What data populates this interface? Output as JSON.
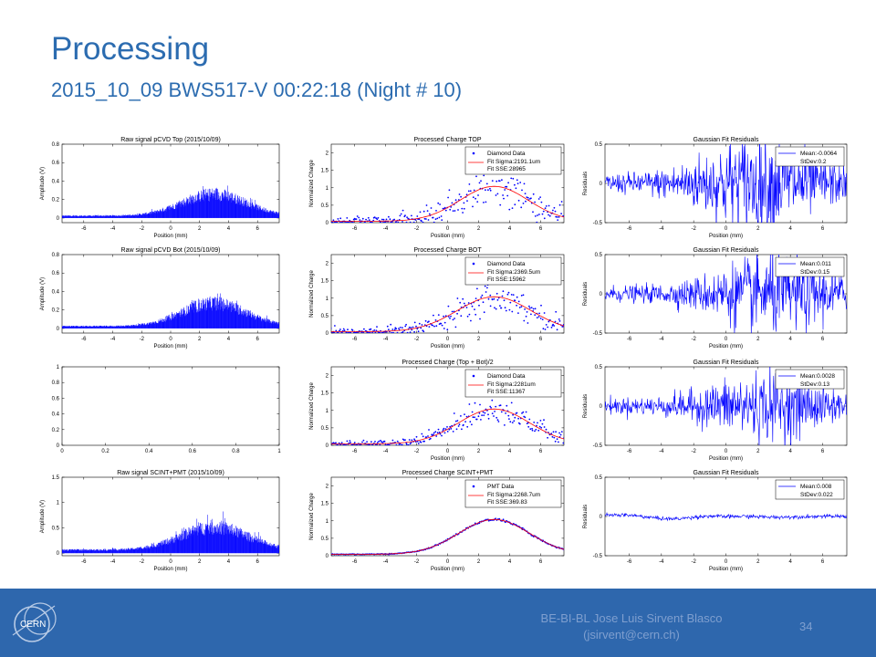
{
  "slide": {
    "title": "Processing",
    "subtitle": "2015_10_09 BWS517-V 00:22:18 (Night # 10)"
  },
  "footer": {
    "author": "BE-BI-BL Jose Luis Sirvent Blasco",
    "email": "(jsirvent@cern.ch)",
    "page_number": "34",
    "logo_text": "CERN"
  },
  "colors": {
    "accent": "#2c6cb0",
    "footer_bg": "#2e67ad",
    "footer_text": "#7f9fcf",
    "data_blue": "#0000ff",
    "fit_red": "#ff0000"
  },
  "chart_data": [
    {
      "id": "raw-top",
      "type": "area",
      "title": "Raw signal pCVD Top (2015/10/09)",
      "xlabel": "Position (mm)",
      "ylabel": "Amplitude (V)",
      "xlim": [
        -7.5,
        7.5
      ],
      "ylim": [
        -0.05,
        0.8
      ],
      "xticks": [
        -6,
        -4,
        -2,
        0,
        2,
        4,
        6
      ],
      "yticks": [
        0,
        0.2,
        0.4,
        0.6,
        0.8
      ],
      "yticklabels": [
        "0",
        "0.2",
        "0.4",
        "0.6",
        "0.8"
      ],
      "signal": {
        "center": 3,
        "sigma": 2.2,
        "peak": 0.3,
        "baseline": 0.03
      }
    },
    {
      "id": "proc-top",
      "type": "scatter",
      "title": "Processed Charge TOP",
      "xlabel": "Position (mm)",
      "ylabel": "Normalized Charge",
      "xlim": [
        -7.5,
        7.5
      ],
      "ylim": [
        0,
        2.25
      ],
      "xticks": [
        -6,
        -4,
        -2,
        0,
        2,
        4,
        6
      ],
      "yticks": [
        0,
        0.5,
        1,
        1.5,
        2
      ],
      "yticklabels": [
        "0",
        "0.5",
        "1",
        "1.5",
        "2"
      ],
      "fit": {
        "center": 3,
        "sigma": 2.19,
        "amplitude": 1.0
      },
      "noise": 0.22,
      "legend": [
        "Diamond Data",
        "Fit Sigma:2191.1um",
        "Fit SSE:28965"
      ]
    },
    {
      "id": "resid-top",
      "type": "line",
      "title": "Gaussian Fit Residuals",
      "xlabel": "Position (mm)",
      "ylabel": "Residuals",
      "xlim": [
        -7.5,
        7.5
      ],
      "ylim": [
        -0.5,
        0.5
      ],
      "xticks": [
        -6,
        -4,
        -2,
        0,
        2,
        4,
        6
      ],
      "yticks": [
        -0.5,
        0,
        0.5
      ],
      "yticklabels": [
        "-0.5",
        "0",
        "0.5"
      ],
      "noise": {
        "base": 0.06,
        "peak": 0.32,
        "center": 2,
        "width": 3
      },
      "legend": [
        "Mean:-0.0064",
        "StDev:0.2"
      ]
    },
    {
      "id": "raw-bot",
      "type": "area",
      "title": "Raw signal pCVD Bot (2015/10/09)",
      "xlabel": "Position (mm)",
      "ylabel": "Amplitude (V)",
      "xlim": [
        -7.5,
        7.5
      ],
      "ylim": [
        -0.05,
        0.8
      ],
      "xticks": [
        -6,
        -4,
        -2,
        0,
        2,
        4,
        6
      ],
      "yticks": [
        0,
        0.2,
        0.4,
        0.6,
        0.8
      ],
      "yticklabels": [
        "0",
        "0.2",
        "0.4",
        "0.6",
        "0.8"
      ],
      "signal": {
        "center": 3,
        "sigma": 2.2,
        "peak": 0.32,
        "baseline": 0.03
      }
    },
    {
      "id": "proc-bot",
      "type": "scatter",
      "title": "Processed Charge BOT",
      "xlabel": "Position (mm)",
      "ylabel": "Normalized Charge",
      "xlim": [
        -7.5,
        7.5
      ],
      "ylim": [
        0,
        2.25
      ],
      "xticks": [
        -6,
        -4,
        -2,
        0,
        2,
        4,
        6
      ],
      "yticks": [
        0,
        0.5,
        1,
        1.5,
        2
      ],
      "yticklabels": [
        "0",
        "0.5",
        "1",
        "1.5",
        "2"
      ],
      "fit": {
        "center": 3,
        "sigma": 2.37,
        "amplitude": 1.0
      },
      "noise": 0.17,
      "legend": [
        "Diamond Data",
        "Fit Sigma:2369.5um",
        "Fit SSE:15962"
      ]
    },
    {
      "id": "resid-bot",
      "type": "line",
      "title": "Gaussian Fit Residuals",
      "xlabel": "Position (mm)",
      "ylabel": "Residuals",
      "xlim": [
        -7.5,
        7.5
      ],
      "ylim": [
        -0.5,
        0.5
      ],
      "xticks": [
        -6,
        -4,
        -2,
        0,
        2,
        4,
        6
      ],
      "yticks": [
        -0.5,
        0,
        0.5
      ],
      "yticklabels": [
        "-0.5",
        "0",
        "0.5"
      ],
      "noise": {
        "base": 0.05,
        "peak": 0.26,
        "center": 3,
        "width": 3
      },
      "legend": [
        "Mean:0.011",
        "StDev:0.15"
      ]
    },
    {
      "id": "empty",
      "type": "line",
      "title": "",
      "xlabel": "",
      "ylabel": "",
      "xlim": [
        0,
        1
      ],
      "ylim": [
        0,
        1
      ],
      "xticks": [
        0,
        0.2,
        0.4,
        0.6,
        0.8,
        1
      ],
      "xticklabels": [
        "0",
        "0.2",
        "0.4",
        "0.6",
        "0.8",
        "1"
      ],
      "yticks": [
        0,
        0.2,
        0.4,
        0.6,
        0.8,
        1
      ],
      "yticklabels": [
        "0",
        "0.2",
        "0.4",
        "0.6",
        "0.8",
        "1"
      ]
    },
    {
      "id": "proc-avg",
      "type": "scatter",
      "title": "Processed Charge (Top + Bot)/2",
      "xlabel": "Position (mm)",
      "ylabel": "Normalized Charge",
      "xlim": [
        -7.5,
        7.5
      ],
      "ylim": [
        0,
        2.25
      ],
      "xticks": [
        -6,
        -4,
        -2,
        0,
        2,
        4,
        6
      ],
      "yticks": [
        0,
        0.5,
        1,
        1.5,
        2
      ],
      "yticklabels": [
        "0",
        "0.5",
        "1",
        "1.5",
        "2"
      ],
      "fit": {
        "center": 3,
        "sigma": 2.28,
        "amplitude": 1.0
      },
      "noise": 0.14,
      "legend": [
        "Diamond Data",
        "Fit Sigma:2281um",
        "Fit SSE:11367"
      ]
    },
    {
      "id": "resid-avg",
      "type": "line",
      "title": "Gaussian Fit Residuals",
      "xlabel": "Position (mm)",
      "ylabel": "Residuals",
      "xlim": [
        -7.5,
        7.5
      ],
      "ylim": [
        -0.5,
        0.5
      ],
      "xticks": [
        -6,
        -4,
        -2,
        0,
        2,
        4,
        6
      ],
      "yticks": [
        -0.5,
        0,
        0.5
      ],
      "yticklabels": [
        "-0.5",
        "0",
        "0.5"
      ],
      "noise": {
        "base": 0.05,
        "peak": 0.22,
        "center": 2.5,
        "width": 3
      },
      "legend": [
        "Mean:0.0028",
        "StDev:0.13"
      ]
    },
    {
      "id": "raw-pmt",
      "type": "area",
      "title": "Raw signal SCINT+PMT (2015/10/09)",
      "xlabel": "Position (mm)",
      "ylabel": "Amplitude (V)",
      "xlim": [
        -7.5,
        7.5
      ],
      "ylim": [
        -0.05,
        1.5
      ],
      "xticks": [
        -6,
        -4,
        -2,
        0,
        2,
        4,
        6
      ],
      "yticks": [
        0,
        0.5,
        1,
        1.5
      ],
      "yticklabels": [
        "0",
        "0.5",
        "1",
        "1.5"
      ],
      "signal": {
        "center": 3,
        "sigma": 2.3,
        "peak": 0.58,
        "baseline": 0.08
      }
    },
    {
      "id": "proc-pmt",
      "type": "scatter",
      "title": "Processed Charge SCINT+PMT",
      "xlabel": "Position (mm)",
      "ylabel": "Normalized Charge",
      "xlim": [
        -7.5,
        7.5
      ],
      "ylim": [
        0,
        2.25
      ],
      "xticks": [
        -6,
        -4,
        -2,
        0,
        2,
        4,
        6
      ],
      "yticks": [
        0,
        0.5,
        1,
        1.5,
        2
      ],
      "yticklabels": [
        "0",
        "0.5",
        "1",
        "1.5",
        "2"
      ],
      "fit": {
        "center": 3,
        "sigma": 2.27,
        "amplitude": 1.0
      },
      "noise": 0.012,
      "legend": [
        "PMT Data",
        "Fit Sigma:2268.7um",
        "Fit SSE:369.83"
      ]
    },
    {
      "id": "resid-pmt",
      "type": "line",
      "title": "Gaussian Fit Residuals",
      "xlabel": "Position (mm)",
      "ylabel": "Residuals",
      "xlim": [
        -7.5,
        7.5
      ],
      "ylim": [
        -0.5,
        0.5
      ],
      "xticks": [
        -6,
        -4,
        -2,
        0,
        2,
        4,
        6
      ],
      "yticks": [
        -0.5,
        0,
        0.5
      ],
      "yticklabels": [
        "-0.5",
        "0",
        "0.5"
      ],
      "noise": {
        "base": 0.012,
        "peak": 0.012,
        "center": 0,
        "width": 3
      },
      "wave": 0.03,
      "legend": [
        "Mean:0.008",
        "StDev:0.022"
      ]
    }
  ]
}
